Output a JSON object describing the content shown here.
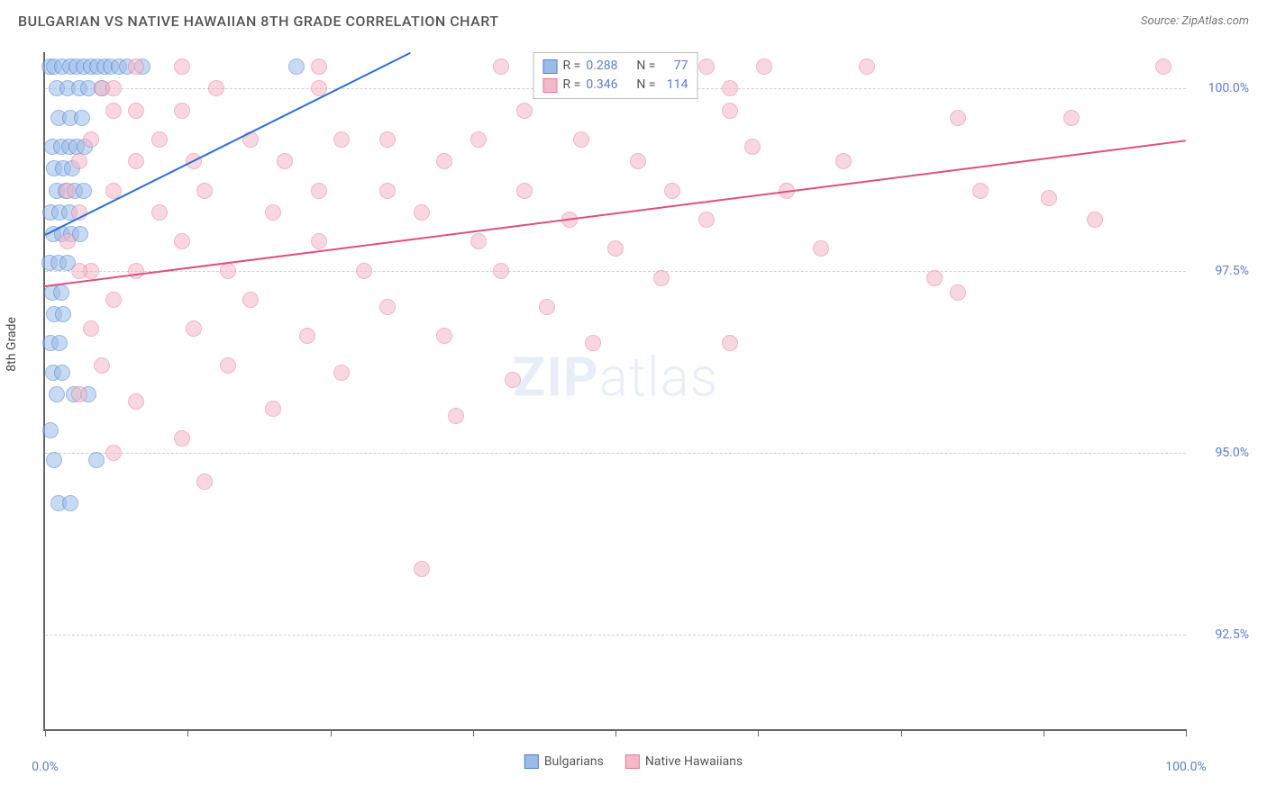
{
  "title": "BULGARIAN VS NATIVE HAWAIIAN 8TH GRADE CORRELATION CHART",
  "source": "Source: ZipAtlas.com",
  "watermark_bold": "ZIP",
  "watermark_rest": "atlas",
  "y_axis_label": "8th Grade",
  "x_min": 0,
  "x_max": 100,
  "y_min": 91.2,
  "y_max": 100.5,
  "y_ticks": [
    {
      "val": 100.0,
      "label": "100.0%"
    },
    {
      "val": 97.5,
      "label": "97.5%"
    },
    {
      "val": 95.0,
      "label": "95.0%"
    },
    {
      "val": 92.5,
      "label": "92.5%"
    }
  ],
  "x_ticks": [
    0,
    12.5,
    25,
    37.5,
    50,
    62.5,
    75,
    87.5,
    100
  ],
  "x_tick_labels": [
    {
      "val": 0,
      "label": "0.0%"
    },
    {
      "val": 100,
      "label": "100.0%"
    }
  ],
  "point_radius": 9,
  "point_opacity": 0.55,
  "series": [
    {
      "key": "bulgarians",
      "label": "Bulgarians",
      "fill": "#9bbce8",
      "stroke": "#4a7fd1",
      "line_color": "#2e6fd6",
      "R": "0.288",
      "N": "77",
      "trend": {
        "x1": 0,
        "y1": 98.0,
        "x2": 32,
        "y2": 100.5
      },
      "points": [
        [
          0.4,
          100.3
        ],
        [
          0.8,
          100.3
        ],
        [
          1.5,
          100.3
        ],
        [
          2.2,
          100.3
        ],
        [
          2.8,
          100.3
        ],
        [
          3.4,
          100.3
        ],
        [
          4.0,
          100.3
        ],
        [
          4.6,
          100.3
        ],
        [
          5.2,
          100.3
        ],
        [
          5.8,
          100.3
        ],
        [
          6.5,
          100.3
        ],
        [
          7.2,
          100.3
        ],
        [
          8.5,
          100.3
        ],
        [
          22,
          100.3
        ],
        [
          1.0,
          100.0
        ],
        [
          2.0,
          100.0
        ],
        [
          3.0,
          100.0
        ],
        [
          3.8,
          100.0
        ],
        [
          5.0,
          100.0
        ],
        [
          1.2,
          99.6
        ],
        [
          2.2,
          99.6
        ],
        [
          3.2,
          99.6
        ],
        [
          0.6,
          99.2
        ],
        [
          1.4,
          99.2
        ],
        [
          2.1,
          99.2
        ],
        [
          2.8,
          99.2
        ],
        [
          3.5,
          99.2
        ],
        [
          0.8,
          98.9
        ],
        [
          1.6,
          98.9
        ],
        [
          2.4,
          98.9
        ],
        [
          1.0,
          98.6
        ],
        [
          1.8,
          98.6
        ],
        [
          2.6,
          98.6
        ],
        [
          3.4,
          98.6
        ],
        [
          0.5,
          98.3
        ],
        [
          1.3,
          98.3
        ],
        [
          2.1,
          98.3
        ],
        [
          0.7,
          98.0
        ],
        [
          1.5,
          98.0
        ],
        [
          2.3,
          98.0
        ],
        [
          3.1,
          98.0
        ],
        [
          0.4,
          97.6
        ],
        [
          1.2,
          97.6
        ],
        [
          2.0,
          97.6
        ],
        [
          0.6,
          97.2
        ],
        [
          1.4,
          97.2
        ],
        [
          0.8,
          96.9
        ],
        [
          1.6,
          96.9
        ],
        [
          0.5,
          96.5
        ],
        [
          1.3,
          96.5
        ],
        [
          0.7,
          96.1
        ],
        [
          1.5,
          96.1
        ],
        [
          1.0,
          95.8
        ],
        [
          2.5,
          95.8
        ],
        [
          3.8,
          95.8
        ],
        [
          0.5,
          95.3
        ],
        [
          0.8,
          94.9
        ],
        [
          4.5,
          94.9
        ],
        [
          1.2,
          94.3
        ],
        [
          2.2,
          94.3
        ]
      ]
    },
    {
      "key": "hawaiians",
      "label": "Native Hawaiians",
      "fill": "#f5b8c8",
      "stroke": "#e77a9a",
      "line_color": "#e04f7d",
      "R": "0.346",
      "N": "114",
      "trend": {
        "x1": 0,
        "y1": 97.3,
        "x2": 100,
        "y2": 99.3
      },
      "points": [
        [
          8,
          100.3
        ],
        [
          12,
          100.3
        ],
        [
          24,
          100.3
        ],
        [
          40,
          100.3
        ],
        [
          50,
          100.3
        ],
        [
          55,
          100.3
        ],
        [
          58,
          100.3
        ],
        [
          60,
          100.0
        ],
        [
          63,
          100.3
        ],
        [
          72,
          100.3
        ],
        [
          98,
          100.3
        ],
        [
          5,
          100.0
        ],
        [
          6,
          100.0
        ],
        [
          15,
          100.0
        ],
        [
          24,
          100.0
        ],
        [
          6,
          99.7
        ],
        [
          8,
          99.7
        ],
        [
          12,
          99.7
        ],
        [
          42,
          99.7
        ],
        [
          60,
          99.7
        ],
        [
          80,
          99.6
        ],
        [
          90,
          99.6
        ],
        [
          4,
          99.3
        ],
        [
          10,
          99.3
        ],
        [
          18,
          99.3
        ],
        [
          26,
          99.3
        ],
        [
          30,
          99.3
        ],
        [
          38,
          99.3
        ],
        [
          47,
          99.3
        ],
        [
          62,
          99.2
        ],
        [
          3,
          99.0
        ],
        [
          8,
          99.0
        ],
        [
          13,
          99.0
        ],
        [
          21,
          99.0
        ],
        [
          35,
          99.0
        ],
        [
          52,
          99.0
        ],
        [
          70,
          99.0
        ],
        [
          2,
          98.6
        ],
        [
          6,
          98.6
        ],
        [
          14,
          98.6
        ],
        [
          24,
          98.6
        ],
        [
          30,
          98.6
        ],
        [
          42,
          98.6
        ],
        [
          55,
          98.6
        ],
        [
          65,
          98.6
        ],
        [
          82,
          98.6
        ],
        [
          88,
          98.5
        ],
        [
          92,
          98.2
        ],
        [
          3,
          98.3
        ],
        [
          10,
          98.3
        ],
        [
          20,
          98.3
        ],
        [
          33,
          98.3
        ],
        [
          46,
          98.2
        ],
        [
          58,
          98.2
        ],
        [
          2,
          97.9
        ],
        [
          12,
          97.9
        ],
        [
          24,
          97.9
        ],
        [
          38,
          97.9
        ],
        [
          50,
          97.8
        ],
        [
          68,
          97.8
        ],
        [
          4,
          97.5
        ],
        [
          3,
          97.5
        ],
        [
          8,
          97.5
        ],
        [
          16,
          97.5
        ],
        [
          28,
          97.5
        ],
        [
          40,
          97.5
        ],
        [
          54,
          97.4
        ],
        [
          78,
          97.4
        ],
        [
          80,
          97.2
        ],
        [
          6,
          97.1
        ],
        [
          18,
          97.1
        ],
        [
          30,
          97.0
        ],
        [
          44,
          97.0
        ],
        [
          4,
          96.7
        ],
        [
          13,
          96.7
        ],
        [
          23,
          96.6
        ],
        [
          35,
          96.6
        ],
        [
          48,
          96.5
        ],
        [
          60,
          96.5
        ],
        [
          5,
          96.2
        ],
        [
          16,
          96.2
        ],
        [
          26,
          96.1
        ],
        [
          41,
          96.0
        ],
        [
          8,
          95.7
        ],
        [
          3,
          95.8
        ],
        [
          20,
          95.6
        ],
        [
          36,
          95.5
        ],
        [
          12,
          95.2
        ],
        [
          6,
          95.0
        ],
        [
          14,
          94.6
        ],
        [
          33,
          93.4
        ]
      ]
    }
  ]
}
